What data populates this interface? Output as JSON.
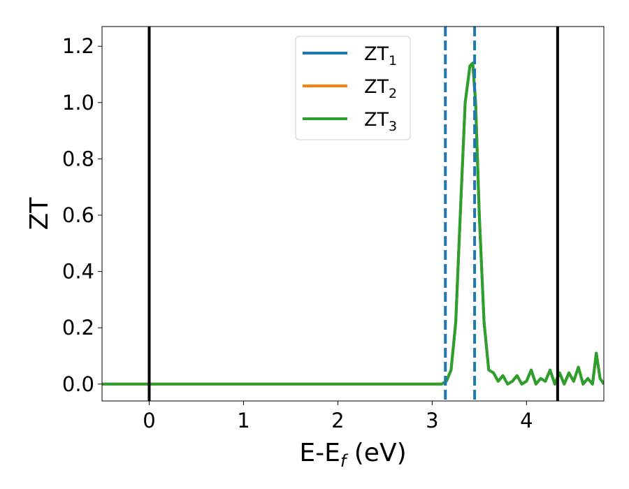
{
  "chart_data": {
    "type": "line",
    "xlabel_main": "E-E",
    "xlabel_sub": "f",
    "xlabel_unit": " (eV)",
    "ylabel": "ZT",
    "xlim": [
      -0.5,
      4.82
    ],
    "ylim": [
      -0.06,
      1.27
    ],
    "x_ticks": [
      0,
      1,
      2,
      3,
      4
    ],
    "x_tick_labels": [
      "0",
      "1",
      "2",
      "3",
      "4"
    ],
    "y_ticks": [
      0.0,
      0.2,
      0.4,
      0.6,
      0.8,
      1.0,
      1.2
    ],
    "y_tick_labels": [
      "0.0",
      "0.2",
      "0.4",
      "0.6",
      "0.8",
      "1.0",
      "1.2"
    ],
    "grid": false,
    "legend_position": "upper center",
    "series": [
      {
        "name": "ZT",
        "name_sub": "1",
        "color": "#1f77b4",
        "x": [
          -0.5,
          3.1,
          3.15,
          3.2,
          3.25,
          3.3,
          3.35,
          3.4,
          3.43,
          3.46,
          3.5,
          3.55,
          3.6,
          3.65,
          3.7,
          3.75,
          3.8,
          3.85,
          3.9,
          3.95,
          4.0,
          4.05,
          4.1,
          4.15,
          4.2,
          4.25,
          4.3,
          4.35,
          4.4,
          4.45,
          4.5,
          4.55,
          4.6,
          4.65,
          4.7,
          4.74,
          4.78,
          4.82
        ],
        "y": [
          0.0,
          0.0,
          0.01,
          0.05,
          0.22,
          0.62,
          1.0,
          1.13,
          1.14,
          1.0,
          0.6,
          0.22,
          0.05,
          0.04,
          0.01,
          0.03,
          0.0,
          0.01,
          0.03,
          0.0,
          0.01,
          0.05,
          0.0,
          0.02,
          0.01,
          0.05,
          0.0,
          0.04,
          0.0,
          0.04,
          0.01,
          0.06,
          0.0,
          0.02,
          0.0,
          0.11,
          0.02,
          0.0
        ]
      },
      {
        "name": "ZT",
        "name_sub": "2",
        "color": "#ff7f0e",
        "x": [
          -0.5,
          3.1,
          3.15,
          3.2,
          3.25,
          3.3,
          3.35,
          3.4,
          3.43,
          3.46,
          3.5,
          3.55,
          3.6,
          3.65,
          3.7,
          3.75,
          3.8,
          3.85,
          3.9,
          3.95,
          4.0,
          4.05,
          4.1,
          4.15,
          4.2,
          4.25,
          4.3,
          4.35,
          4.4,
          4.45,
          4.5,
          4.55,
          4.6,
          4.65,
          4.7,
          4.74,
          4.78,
          4.82
        ],
        "y": [
          0.0,
          0.0,
          0.01,
          0.05,
          0.22,
          0.62,
          1.0,
          1.13,
          1.14,
          1.0,
          0.6,
          0.22,
          0.05,
          0.04,
          0.01,
          0.03,
          0.0,
          0.01,
          0.03,
          0.0,
          0.01,
          0.05,
          0.0,
          0.02,
          0.01,
          0.05,
          0.0,
          0.04,
          0.0,
          0.04,
          0.01,
          0.06,
          0.0,
          0.02,
          0.0,
          0.11,
          0.02,
          0.0
        ]
      },
      {
        "name": "ZT",
        "name_sub": "3",
        "color": "#2ca02c",
        "x": [
          -0.5,
          3.1,
          3.15,
          3.2,
          3.25,
          3.3,
          3.35,
          3.4,
          3.43,
          3.46,
          3.5,
          3.55,
          3.6,
          3.65,
          3.7,
          3.75,
          3.8,
          3.85,
          3.9,
          3.95,
          4.0,
          4.05,
          4.1,
          4.15,
          4.2,
          4.25,
          4.3,
          4.35,
          4.4,
          4.45,
          4.5,
          4.55,
          4.6,
          4.65,
          4.7,
          4.74,
          4.78,
          4.82
        ],
        "y": [
          0.0,
          0.0,
          0.01,
          0.05,
          0.22,
          0.62,
          1.0,
          1.13,
          1.14,
          1.0,
          0.6,
          0.22,
          0.05,
          0.04,
          0.01,
          0.03,
          0.0,
          0.01,
          0.03,
          0.0,
          0.01,
          0.05,
          0.0,
          0.02,
          0.01,
          0.05,
          0.0,
          0.04,
          0.0,
          0.04,
          0.01,
          0.06,
          0.0,
          0.02,
          0.0,
          0.11,
          0.02,
          0.0
        ]
      }
    ],
    "vlines": [
      {
        "x": 0.0,
        "style": "solid",
        "color": "#000000"
      },
      {
        "x": 4.33,
        "style": "solid",
        "color": "#000000"
      },
      {
        "x": 3.14,
        "style": "dashed",
        "color": "#1f77b4"
      },
      {
        "x": 3.45,
        "style": "dashed",
        "color": "#1f77b4"
      }
    ]
  }
}
